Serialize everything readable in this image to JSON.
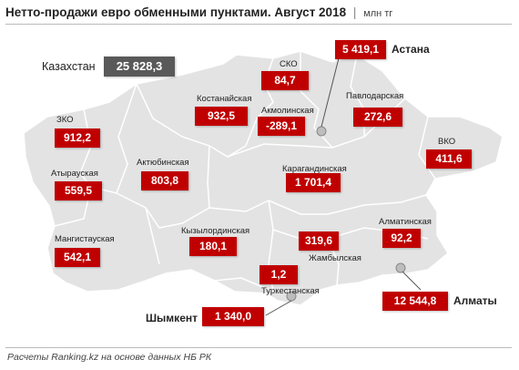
{
  "title": {
    "main": "Нетто-продажи евро обменными пунктами.  Август 2018",
    "separator": "|",
    "unit": "млн тг"
  },
  "source": "Расчеты Ranking.kz на основе данных НБ РК",
  "colors": {
    "value_box": "#c00000",
    "total_box": "#595959",
    "map_fill": "#e3e3e3",
    "map_border": "#ffffff"
  },
  "chart_data": {
    "type": "map",
    "title": "Нетто-продажи евро обменными пунктами.  Август 2018",
    "unit": "млн тг",
    "total": {
      "name": "Казахстан",
      "value_label": "25 828,3",
      "value": 25828.3
    },
    "regions": [
      {
        "name": "СКО",
        "value_label": "84,7",
        "value": 84.7
      },
      {
        "name": "Астана",
        "value_label": "5 419,1",
        "value": 5419.1
      },
      {
        "name": "Костанайская",
        "value_label": "932,5",
        "value": 932.5
      },
      {
        "name": "Акмолинская",
        "value_label": "-289,1",
        "value": -289.1
      },
      {
        "name": "Павлодарская",
        "value_label": "272,6",
        "value": 272.6
      },
      {
        "name": "ЗКО",
        "value_label": "912,2",
        "value": 912.2
      },
      {
        "name": "ВКО",
        "value_label": "411,6",
        "value": 411.6
      },
      {
        "name": "Актюбинская",
        "value_label": "803,8",
        "value": 803.8
      },
      {
        "name": "Атырауская",
        "value_label": "559,5",
        "value": 559.5
      },
      {
        "name": "Карагандинская",
        "value_label": "1 701,4",
        "value": 1701.4
      },
      {
        "name": "Мангистауская",
        "value_label": "542,1",
        "value": 542.1
      },
      {
        "name": "Кызылординская",
        "value_label": "180,1",
        "value": 180.1
      },
      {
        "name": "Алматинская",
        "value_label": "92,2",
        "value": 92.2
      },
      {
        "name": "Жамбылская",
        "value_label": "319,6",
        "value": 319.6
      },
      {
        "name": "Туркестанская",
        "value_label": "1,2",
        "value": 1.2
      },
      {
        "name": "Алматы",
        "value_label": "12 544,8",
        "value": 12544.8
      },
      {
        "name": "Шымкент",
        "value_label": "1 340,0",
        "value": 1340.0
      }
    ]
  }
}
